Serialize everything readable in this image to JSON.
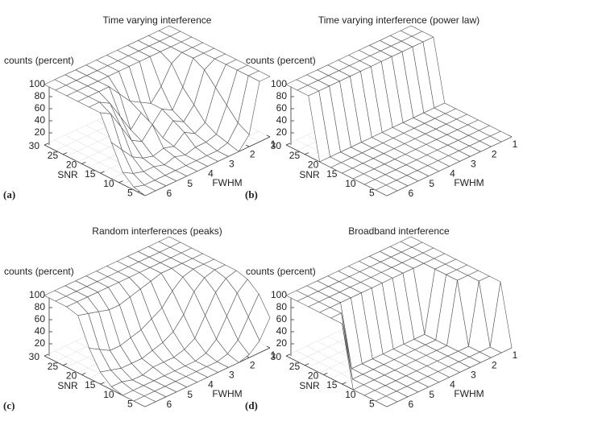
{
  "chart_data": [
    {
      "type": "surface",
      "title": "Time varying interference",
      "panel_label": "(a)",
      "zlabel": "counts (percent)",
      "xlabel": "FWHM",
      "ylabel": "SNR",
      "x": [
        1,
        1.5,
        2,
        2.5,
        3,
        3.5,
        4,
        4.5,
        5,
        5.5,
        6,
        6.5,
        7
      ],
      "y": [
        30,
        27,
        24,
        21,
        18,
        15,
        12,
        9,
        6,
        3
      ],
      "values": [
        [
          100,
          100,
          100,
          100,
          100,
          100,
          100,
          100,
          100,
          100,
          100,
          100,
          100
        ],
        [
          100,
          100,
          100,
          100,
          100,
          100,
          100,
          100,
          100,
          100,
          100,
          100,
          100
        ],
        [
          100,
          100,
          100,
          100,
          100,
          100,
          100,
          100,
          100,
          100,
          100,
          100,
          100
        ],
        [
          100,
          100,
          100,
          90,
          60,
          40,
          50,
          60,
          80,
          100,
          100,
          100,
          100
        ],
        [
          100,
          100,
          100,
          60,
          30,
          40,
          20,
          50,
          30,
          60,
          90,
          100,
          100
        ],
        [
          100,
          100,
          90,
          40,
          20,
          30,
          10,
          40,
          20,
          30,
          60,
          90,
          100
        ],
        [
          100,
          100,
          70,
          20,
          10,
          20,
          5,
          10,
          5,
          10,
          20,
          40,
          60
        ],
        [
          100,
          100,
          50,
          10,
          5,
          5,
          0,
          5,
          0,
          5,
          5,
          10,
          20
        ],
        [
          100,
          100,
          30,
          5,
          0,
          0,
          0,
          0,
          0,
          0,
          0,
          0,
          5
        ],
        [
          100,
          100,
          20,
          0,
          0,
          0,
          0,
          0,
          0,
          0,
          0,
          0,
          0
        ]
      ],
      "xlim": [
        1,
        7
      ],
      "ylim": [
        3,
        30
      ],
      "zlim": [
        0,
        100
      ],
      "xticks": [
        1,
        2,
        3,
        4,
        5,
        6
      ],
      "yticks": [
        5,
        10,
        15,
        20,
        25,
        30
      ],
      "zticks": [
        20,
        40,
        60,
        80,
        100
      ]
    },
    {
      "type": "surface",
      "title": "Time varying interference (power law)",
      "panel_label": "(b)",
      "zlabel": "counts (percent)",
      "xlabel": "FWHM",
      "ylabel": "SNR",
      "x": [
        1,
        1.5,
        2,
        2.5,
        3,
        3.5,
        4,
        4.5,
        5,
        5.5,
        6,
        6.5,
        7
      ],
      "y": [
        30,
        27,
        24,
        21,
        18,
        15,
        12,
        9,
        6,
        3
      ],
      "values": [
        [
          100,
          100,
          100,
          100,
          100,
          100,
          100,
          100,
          100,
          100,
          100,
          100,
          100
        ],
        [
          100,
          100,
          100,
          100,
          100,
          100,
          100,
          100,
          100,
          100,
          100,
          100,
          100
        ],
        [
          100,
          100,
          100,
          100,
          100,
          100,
          100,
          100,
          100,
          100,
          100,
          100,
          100
        ],
        [
          0,
          0,
          0,
          0,
          0,
          0,
          0,
          0,
          0,
          0,
          0,
          0,
          0
        ],
        [
          0,
          0,
          0,
          0,
          0,
          0,
          0,
          0,
          0,
          0,
          0,
          0,
          0
        ],
        [
          0,
          0,
          0,
          0,
          0,
          0,
          0,
          0,
          0,
          0,
          0,
          0,
          0
        ],
        [
          0,
          0,
          0,
          0,
          0,
          0,
          0,
          0,
          0,
          0,
          0,
          0,
          0
        ],
        [
          0,
          0,
          0,
          0,
          0,
          0,
          0,
          0,
          0,
          0,
          0,
          0,
          0
        ],
        [
          0,
          0,
          0,
          0,
          0,
          0,
          0,
          0,
          0,
          0,
          0,
          0,
          0
        ],
        [
          0,
          0,
          0,
          0,
          0,
          0,
          0,
          0,
          0,
          0,
          0,
          0,
          0
        ]
      ],
      "xlim": [
        1,
        7
      ],
      "ylim": [
        3,
        30
      ],
      "zlim": [
        0,
        100
      ],
      "xticks": [
        1,
        2,
        3,
        4,
        5,
        6
      ],
      "yticks": [
        5,
        10,
        15,
        20,
        25,
        30
      ],
      "zticks": [
        20,
        40,
        60,
        80,
        100
      ]
    },
    {
      "type": "surface",
      "title": "Random interferences (peaks)",
      "panel_label": "(c)",
      "zlabel": "counts (percent)",
      "xlabel": "FWHM",
      "ylabel": "SNR",
      "x": [
        1,
        1.5,
        2,
        2.5,
        3,
        3.5,
        4,
        4.5,
        5,
        5.5,
        6,
        6.5,
        7
      ],
      "y": [
        30,
        27,
        24,
        21,
        18,
        15,
        12,
        9,
        6,
        3
      ],
      "values": [
        [
          100,
          100,
          100,
          100,
          100,
          100,
          100,
          100,
          100,
          100,
          100,
          100,
          100
        ],
        [
          100,
          100,
          100,
          100,
          100,
          100,
          100,
          100,
          100,
          100,
          100,
          100,
          100
        ],
        [
          100,
          100,
          100,
          100,
          100,
          100,
          100,
          100,
          100,
          100,
          100,
          100,
          100
        ],
        [
          100,
          100,
          100,
          100,
          100,
          95,
          90,
          85,
          80,
          80,
          85,
          90,
          95
        ],
        [
          100,
          100,
          100,
          95,
          80,
          60,
          50,
          40,
          35,
          30,
          30,
          40,
          50
        ],
        [
          100,
          100,
          95,
          80,
          50,
          30,
          20,
          15,
          10,
          10,
          10,
          15,
          20
        ],
        [
          100,
          95,
          80,
          50,
          20,
          10,
          5,
          5,
          5,
          0,
          0,
          5,
          5
        ],
        [
          95,
          80,
          50,
          20,
          5,
          0,
          0,
          0,
          0,
          0,
          0,
          0,
          0
        ],
        [
          80,
          50,
          20,
          5,
          0,
          0,
          0,
          0,
          0,
          0,
          0,
          0,
          0
        ],
        [
          50,
          20,
          5,
          0,
          0,
          0,
          0,
          0,
          0,
          0,
          0,
          0,
          0
        ]
      ],
      "xlim": [
        1,
        7
      ],
      "ylim": [
        3,
        30
      ],
      "zlim": [
        0,
        100
      ],
      "xticks": [
        1,
        2,
        3,
        4,
        5,
        6
      ],
      "yticks": [
        5,
        10,
        15,
        20,
        25,
        30
      ],
      "zticks": [
        20,
        40,
        60,
        80,
        100
      ]
    },
    {
      "type": "surface",
      "title": "Broadband interference",
      "panel_label": "(d)",
      "zlabel": "counts (percent)",
      "xlabel": "FWHM",
      "ylabel": "SNR",
      "x": [
        1,
        1.5,
        2,
        2.5,
        3,
        3.5,
        4,
        4.5,
        5,
        5.5,
        6,
        6.5,
        7
      ],
      "y": [
        30,
        27,
        24,
        21,
        18,
        15,
        12,
        9,
        6,
        3
      ],
      "values": [
        [
          100,
          100,
          100,
          100,
          100,
          100,
          100,
          100,
          100,
          100,
          100,
          100,
          100
        ],
        [
          100,
          100,
          100,
          100,
          100,
          100,
          100,
          100,
          100,
          100,
          100,
          100,
          100
        ],
        [
          100,
          100,
          100,
          100,
          100,
          100,
          100,
          100,
          100,
          100,
          100,
          100,
          100
        ],
        [
          100,
          100,
          100,
          100,
          100,
          100,
          100,
          100,
          100,
          100,
          100,
          100,
          100
        ],
        [
          100,
          100,
          100,
          0,
          0,
          0,
          0,
          0,
          0,
          0,
          0,
          100,
          100
        ],
        [
          100,
          100,
          100,
          0,
          0,
          0,
          0,
          0,
          0,
          0,
          0,
          0,
          100
        ],
        [
          100,
          100,
          100,
          0,
          0,
          0,
          0,
          0,
          0,
          0,
          0,
          0,
          0
        ],
        [
          100,
          100,
          0,
          0,
          0,
          0,
          0,
          0,
          0,
          0,
          0,
          0,
          0
        ],
        [
          100,
          0,
          0,
          0,
          0,
          0,
          0,
          0,
          0,
          0,
          0,
          0,
          0
        ],
        [
          0,
          0,
          0,
          0,
          0,
          0,
          0,
          0,
          0,
          0,
          0,
          0,
          0
        ]
      ],
      "xlim": [
        1,
        7
      ],
      "ylim": [
        3,
        30
      ],
      "zlim": [
        0,
        100
      ],
      "xticks": [
        1,
        2,
        3,
        4,
        5,
        6
      ],
      "yticks": [
        5,
        10,
        15,
        20,
        25,
        30
      ],
      "zticks": [
        20,
        40,
        60,
        80,
        100
      ]
    }
  ]
}
